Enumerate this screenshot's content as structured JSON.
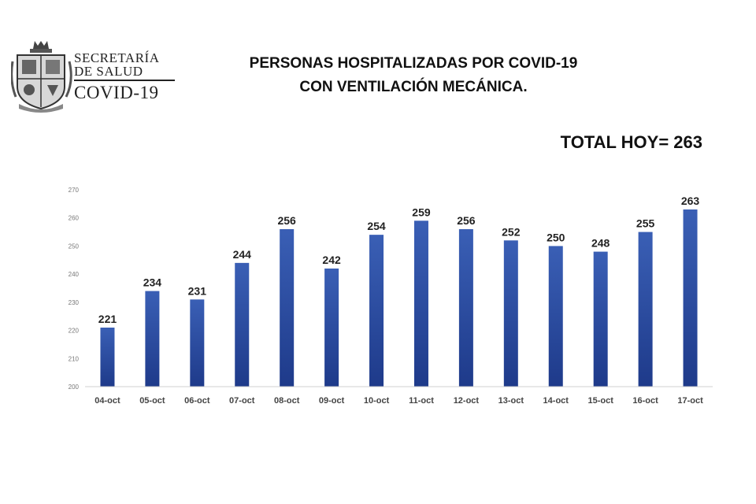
{
  "header": {
    "org_line1": "SECRETARÍA",
    "org_line2": "DE SALUD",
    "org_line3": "COVID-19",
    "title_line1": "PERSONAS HOSPITALIZADAS POR COVID-19",
    "title_line2": "CON VENTILACIÓN MECÁNICA.",
    "total": "TOTAL HOY= 263"
  },
  "logo": {
    "icon": "state-coat-of-arms-icon"
  },
  "colors": {
    "bar_top": "#3a5fb5",
    "bar_bottom": "#1e3a8a",
    "text": "#222222"
  },
  "chart_data": {
    "type": "bar",
    "title": "",
    "xlabel": "",
    "ylabel": "",
    "categories": [
      "04-oct",
      "05-oct",
      "06-oct",
      "07-oct",
      "08-oct",
      "09-oct",
      "10-oct",
      "11-oct",
      "12-oct",
      "13-oct",
      "14-oct",
      "15-oct",
      "16-oct",
      "17-oct"
    ],
    "values": [
      221,
      234,
      231,
      244,
      256,
      242,
      254,
      259,
      256,
      252,
      250,
      248,
      255,
      263
    ],
    "ylim": [
      200,
      270
    ],
    "yticks": [
      200,
      210,
      220,
      230,
      240,
      250,
      260,
      270
    ],
    "grid": false,
    "legend": "none",
    "data_labels": true
  }
}
